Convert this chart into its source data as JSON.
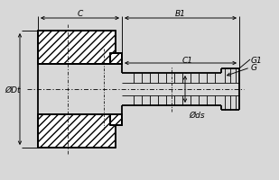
{
  "bg_color": "#d8d8d8",
  "line_color": "#000000",
  "labels": {
    "C": "C",
    "B1": "B1",
    "C1": "C1",
    "G1": "G1",
    "G": "G",
    "Dt": "ØDt",
    "ds": "Øds"
  },
  "figsize": [
    3.09,
    2.01
  ],
  "dpi": 100
}
